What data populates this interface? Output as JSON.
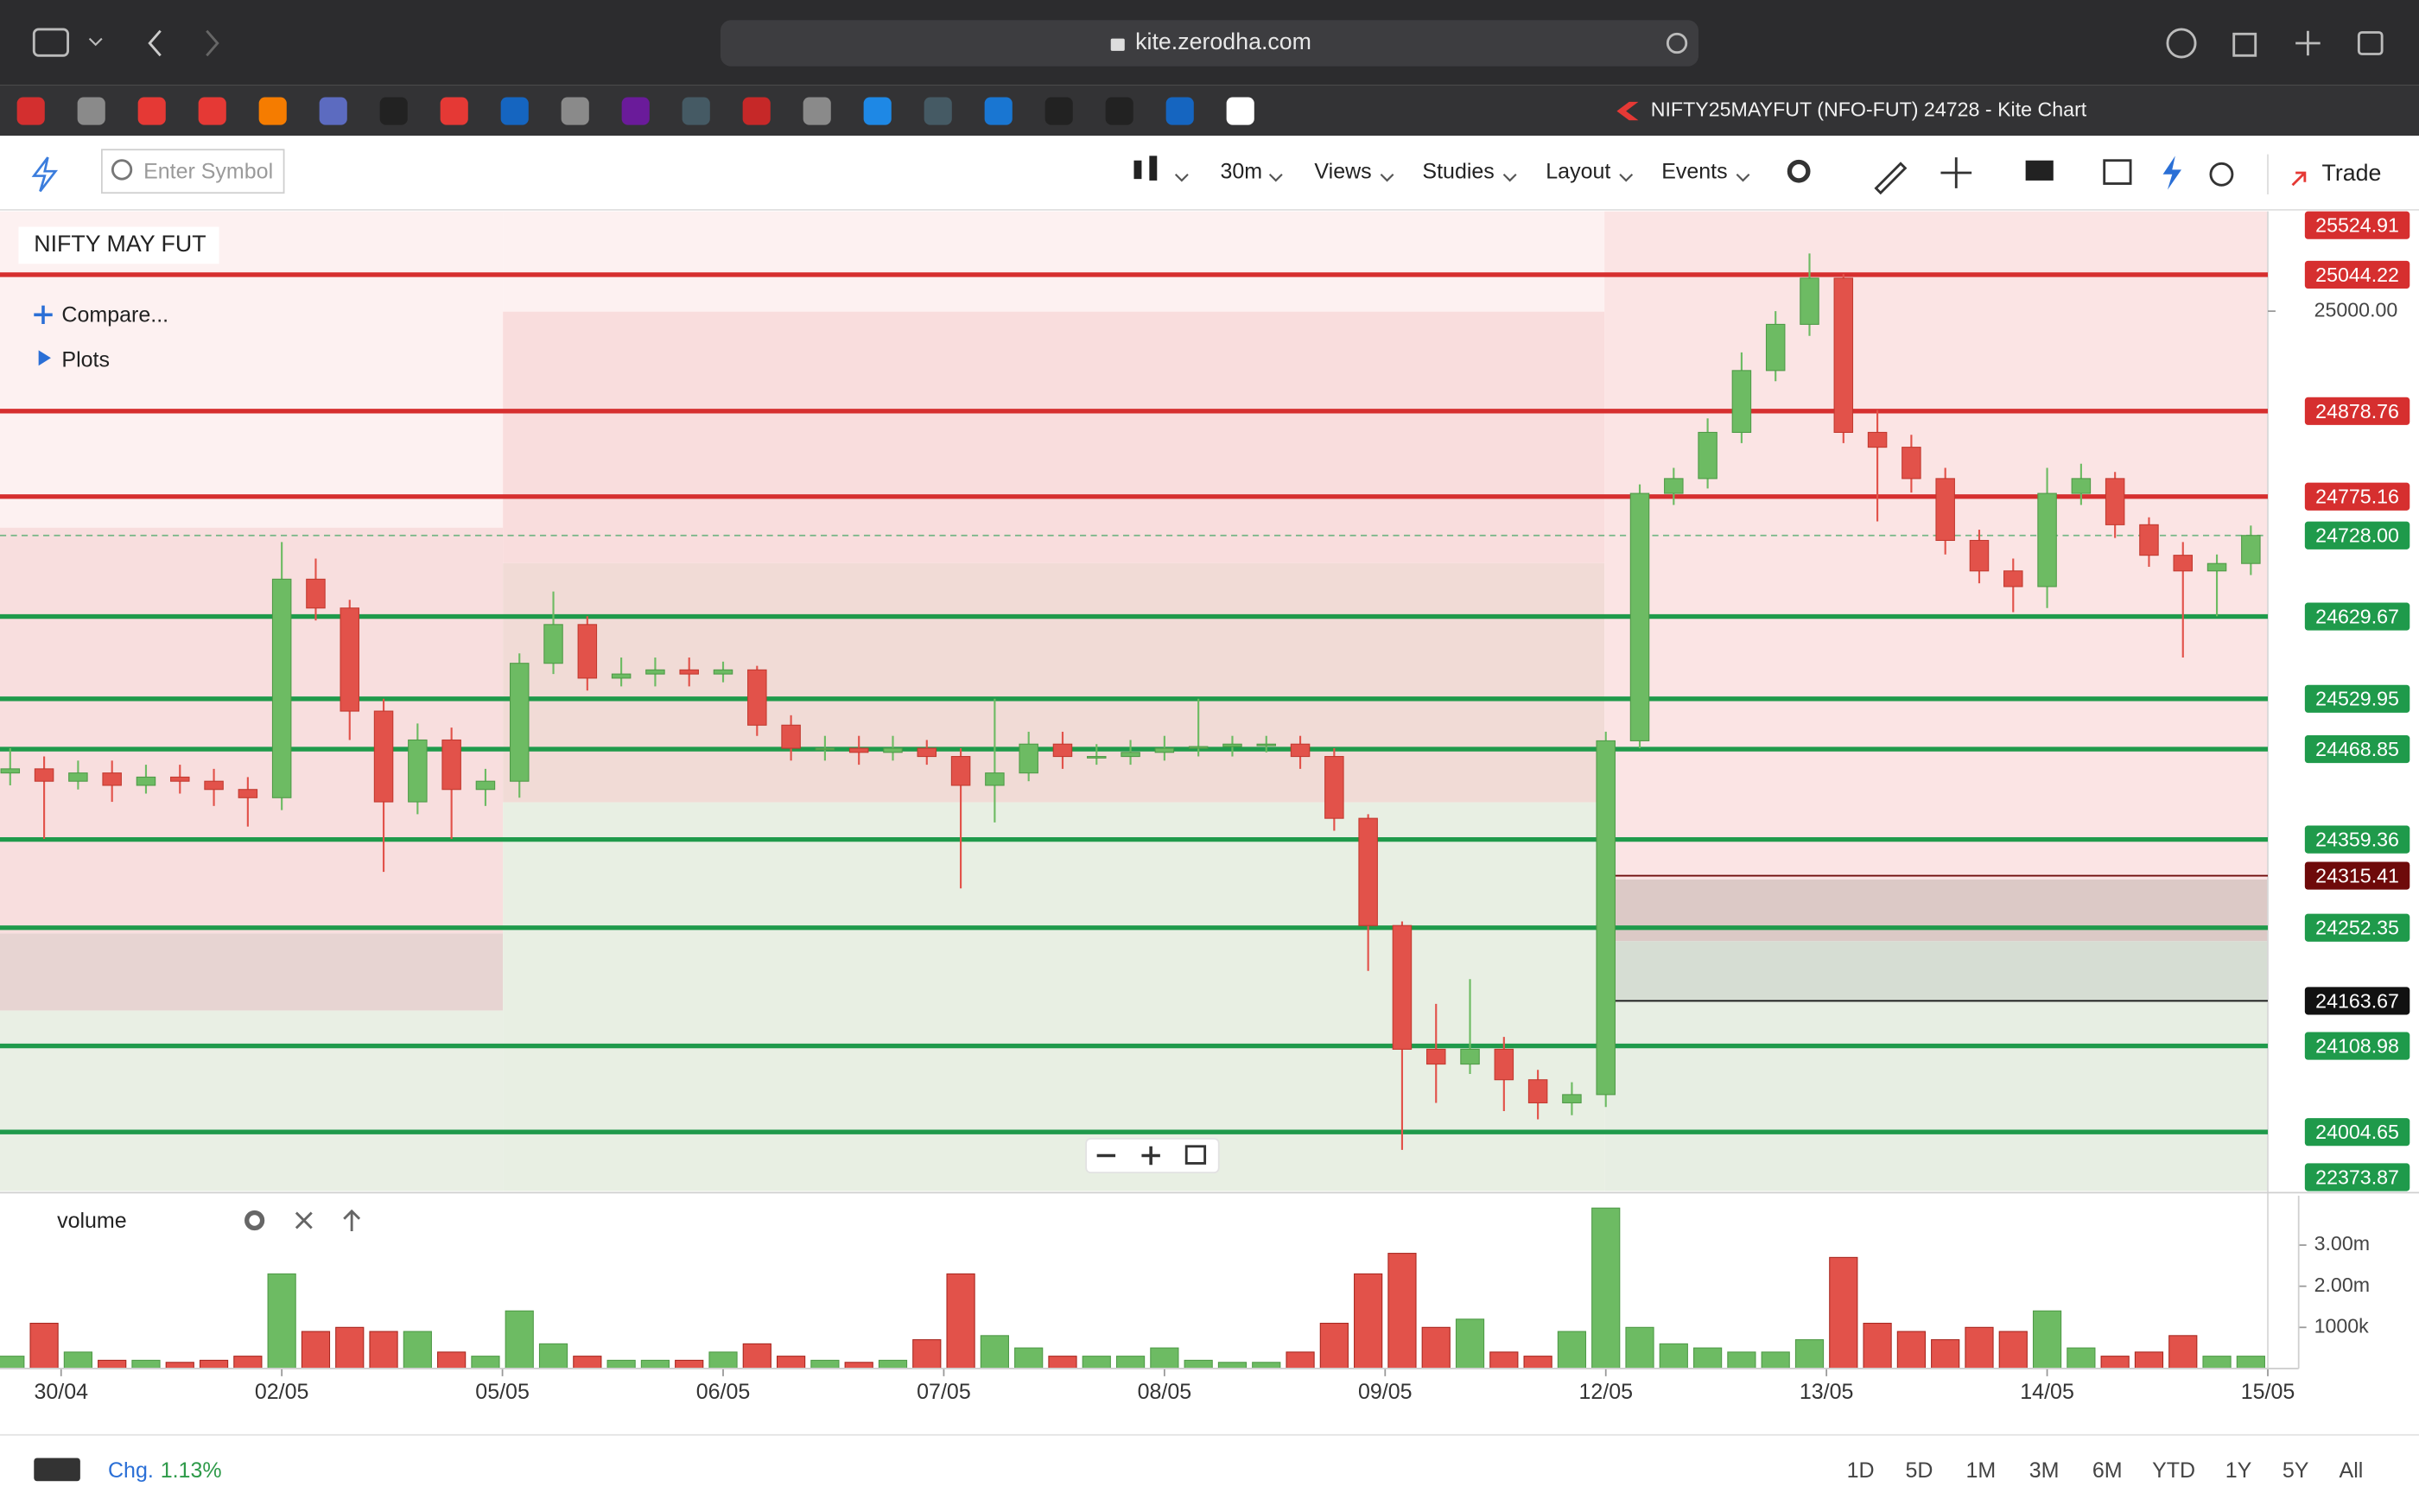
{
  "browser": {
    "url": "kite.zerodha.com",
    "tab_title": "NIFTY25MAYFUT (NFO-FUT) 24728 - Kite Chart"
  },
  "toolbar": {
    "search_placeholder": "Enter Symbol",
    "interval": "30m",
    "menus": [
      "Views",
      "Studies",
      "Layout",
      "Events"
    ],
    "trade": "Trade"
  },
  "chart_data": {
    "type": "candlestick",
    "title": "NIFTY MAY FUT",
    "controls": [
      "Compare...",
      "Plots"
    ],
    "up_color": "#6dbb63",
    "down_color": "#e2524a",
    "open": [
      24440,
      24445,
      24430,
      24440,
      24425,
      24435,
      24430,
      24420,
      24410,
      24675,
      24640,
      24515,
      24405,
      24480,
      24420,
      24430,
      24573,
      24620,
      24555,
      24560,
      24565,
      24560,
      24565,
      24498,
      24470,
      24470,
      24465,
      24470,
      24460,
      24425,
      24440,
      24475,
      24460,
      24460,
      24465,
      24470,
      24472,
      24475,
      24475,
      24460,
      24385,
      24255,
      24105,
      24087,
      24105,
      24068,
      24040,
      24050,
      24479,
      24779,
      24797,
      24853,
      24928,
      24984,
      25040,
      24853,
      24835,
      24797,
      24722,
      24685,
      24666,
      24779,
      24797,
      24741,
      24704,
      24685,
      24694
    ],
    "high": [
      24470,
      24460,
      24455,
      24455,
      24450,
      24450,
      24445,
      24435,
      24720,
      24700,
      24650,
      24530,
      24500,
      24495,
      24445,
      24585,
      24660,
      24630,
      24580,
      24580,
      24580,
      24575,
      24570,
      24510,
      24485,
      24485,
      24485,
      24480,
      24470,
      24530,
      24490,
      24490,
      24475,
      24480,
      24485,
      24530,
      24485,
      24485,
      24485,
      24470,
      24390,
      24260,
      24160,
      24190,
      24120,
      24080,
      24065,
      24490,
      24790,
      24810,
      24870,
      24950,
      25000,
      25070,
      25045,
      24880,
      24850,
      24810,
      24735,
      24700,
      24810,
      24815,
      24805,
      24750,
      24720,
      24705,
      24740
    ],
    "low": [
      24425,
      24360,
      24420,
      24405,
      24415,
      24415,
      24400,
      24375,
      24395,
      24625,
      24480,
      24320,
      24390,
      24360,
      24400,
      24410,
      24560,
      24540,
      24545,
      24545,
      24545,
      24550,
      24485,
      24455,
      24455,
      24450,
      24455,
      24450,
      24300,
      24380,
      24430,
      24445,
      24450,
      24450,
      24455,
      24460,
      24460,
      24465,
      24445,
      24370,
      24200,
      23983,
      24040,
      24075,
      24030,
      24020,
      24025,
      24035,
      24470,
      24765,
      24785,
      24840,
      24915,
      24970,
      24840,
      24745,
      24780,
      24705,
      24670,
      24635,
      24640,
      24765,
      24725,
      24690,
      24580,
      24630,
      24680
    ],
    "close": [
      24445,
      24430,
      24440,
      24425,
      24435,
      24430,
      24420,
      24410,
      24675,
      24640,
      24515,
      24405,
      24480,
      24420,
      24430,
      24573,
      24620,
      24555,
      24560,
      24565,
      24560,
      24565,
      24498,
      24470,
      24470,
      24465,
      24470,
      24460,
      24425,
      24440,
      24475,
      24460,
      24460,
      24465,
      24470,
      24472,
      24475,
      24475,
      24460,
      24385,
      24255,
      24105,
      24087,
      24105,
      24068,
      24040,
      24050,
      24479,
      24779,
      24797,
      24853,
      24928,
      24984,
      25040,
      24853,
      24835,
      24797,
      24722,
      24685,
      24666,
      24779,
      24797,
      24741,
      24704,
      24685,
      24694,
      24728
    ],
    "xlim": [
      -0.3,
      66.5
    ],
    "xticks": [
      {
        "value": 1.5,
        "label": "30/04"
      },
      {
        "value": 8,
        "label": "02/05"
      },
      {
        "value": 14.5,
        "label": "05/05"
      },
      {
        "value": 21,
        "label": "06/05"
      },
      {
        "value": 27.5,
        "label": "07/05"
      },
      {
        "value": 34,
        "label": "08/05"
      },
      {
        "value": 40.5,
        "label": "09/05"
      },
      {
        "value": 47,
        "label": "12/05"
      },
      {
        "value": 53.5,
        "label": "13/05"
      },
      {
        "value": 60,
        "label": "14/05"
      },
      {
        "value": 66.5,
        "label": "15/05"
      }
    ],
    "ylim": [
      23933,
      25121
    ],
    "yticks": [
      {
        "value": 25000,
        "label": "25000.00"
      }
    ],
    "levels": [
      {
        "value": 25524.91,
        "color": "#d62f2f",
        "width": 3
      },
      {
        "value": 25044.22,
        "color": "#d62f2f",
        "width": 3
      },
      {
        "value": 24878.76,
        "color": "#d62f2f",
        "width": 3
      },
      {
        "value": 24775.16,
        "color": "#d62f2f",
        "width": 3
      },
      {
        "value": 24728,
        "label": "24728.00",
        "color": "#1f9a4b",
        "width": 1
      },
      {
        "value": 24629.67,
        "color": "#1f9a4b",
        "width": 3
      },
      {
        "value": 24529.95,
        "color": "#1f9a4b",
        "width": 3
      },
      {
        "value": 24468.85,
        "color": "#1f9a4b",
        "width": 3
      },
      {
        "value": 24359.36,
        "color": "#1f9a4b",
        "width": 3
      },
      {
        "value": 24315.41,
        "color": "#6e0a0a",
        "width": 1
      },
      {
        "value": 24252.35,
        "color": "#1f9a4b",
        "width": 3
      },
      {
        "value": 24163.67,
        "color": "#111111",
        "width": 1
      },
      {
        "value": 24108.98,
        "color": "#1f9a4b",
        "width": 3
      },
      {
        "value": 24004.65,
        "color": "#1f9a4b",
        "width": 3
      },
      {
        "value": 22373.87,
        "color": "#1f9a4b",
        "width": 3
      }
    ],
    "volume": {
      "title": "volume",
      "values": [
        0.3,
        1.1,
        0.4,
        0.2,
        0.2,
        0.15,
        0.2,
        0.3,
        2.3,
        0.9,
        1.0,
        0.9,
        0.9,
        0.4,
        0.3,
        1.4,
        0.6,
        0.3,
        0.2,
        0.2,
        0.2,
        0.4,
        0.6,
        0.3,
        0.2,
        0.15,
        0.2,
        0.7,
        2.3,
        0.8,
        0.5,
        0.3,
        0.3,
        0.3,
        0.5,
        0.2,
        0.15,
        0.15,
        0.4,
        1.1,
        2.3,
        2.8,
        1.0,
        1.2,
        0.4,
        0.3,
        0.9,
        3.9,
        1.0,
        0.6,
        0.5,
        0.4,
        0.4,
        0.7,
        2.7,
        1.1,
        0.9,
        0.7,
        1.0,
        0.9,
        1.4,
        0.5,
        0.3,
        0.4,
        0.8,
        0.3,
        0.3
      ],
      "ylim": [
        0,
        4.2
      ],
      "yticks": [
        {
          "value": 3,
          "label": "3.00m"
        },
        {
          "value": 2,
          "label": "2.00m"
        },
        {
          "value": 1,
          "label": "1000k"
        }
      ]
    }
  },
  "footer": {
    "change_label": "Chg.",
    "change_value": "1.13%",
    "ranges": [
      "1D",
      "5D",
      "1M",
      "3M",
      "6M",
      "YTD",
      "1Y",
      "5Y",
      "All"
    ]
  }
}
